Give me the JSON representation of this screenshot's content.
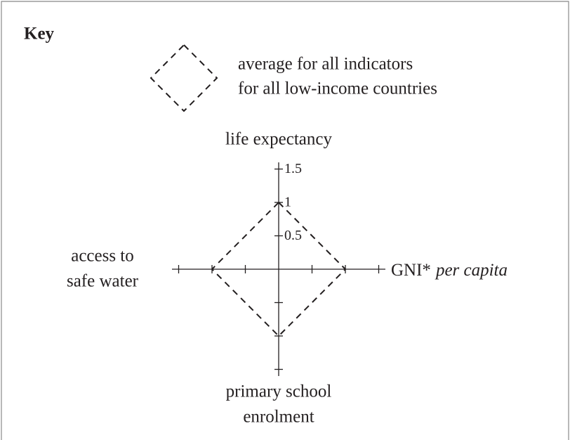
{
  "key": {
    "title": "Key",
    "legend_lines": [
      "average for all indicators",
      "for all low-income countries"
    ]
  },
  "chart": {
    "axes": [
      {
        "label": [
          "life expectancy"
        ],
        "value": 1
      },
      {
        "label": [
          "GNI*",
          "per capita"
        ],
        "value": 1
      },
      {
        "label": [
          "primary school",
          "enrolment"
        ],
        "value": 1
      },
      {
        "label": [
          "access to",
          "safe water"
        ],
        "value": 1
      }
    ],
    "rlim": [
      0,
      1.6
    ],
    "ticks": [
      0.5,
      1,
      1.5
    ]
  }
}
